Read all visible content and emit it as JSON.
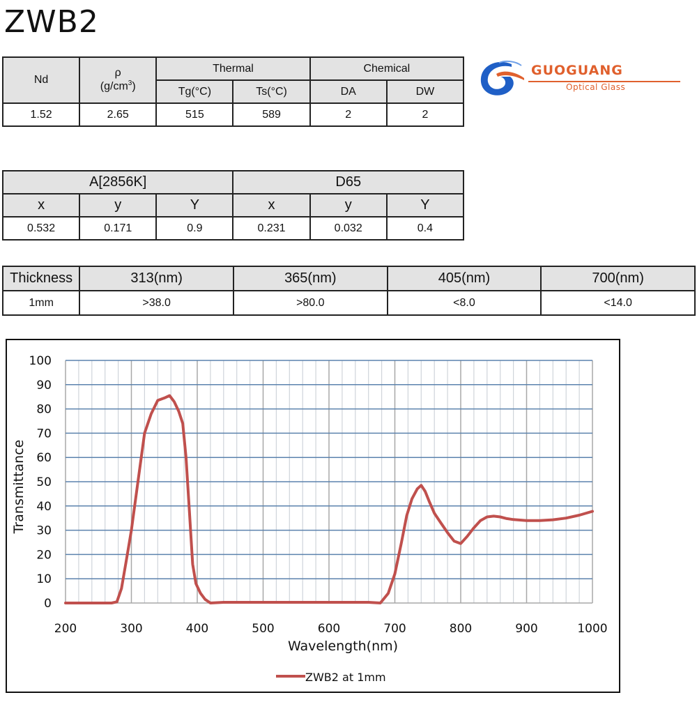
{
  "title": "ZWB2",
  "logo": {
    "brand": "GUOGUANG",
    "subtitle": "Optical Glass",
    "colors": {
      "blue": "#1f5fc6",
      "orange": "#e0602d"
    }
  },
  "properties_table": {
    "headers": {
      "nd": "Nd",
      "rho": "ρ",
      "rho_unit_prefix": "(g/cm",
      "rho_unit_sup": "3",
      "rho_unit_suffix": ")",
      "thermal": "Thermal",
      "chemical": "Chemical",
      "tg": "Tg(°C)",
      "ts": "Ts(°C)",
      "da": "DA",
      "dw": "DW"
    },
    "values": {
      "nd": "1.52",
      "rho": "2.65",
      "tg": "515",
      "ts": "589",
      "da": "2",
      "dw": "2"
    }
  },
  "color_table": {
    "groups": [
      "A[2856K]",
      "D65"
    ],
    "columns": [
      "x",
      "y",
      "Y",
      "x",
      "y",
      "Y"
    ],
    "values": [
      "0.532",
      "0.171",
      "0.9",
      "0.231",
      "0.032",
      "0.4"
    ]
  },
  "transmittance_table": {
    "headers": [
      "Thickness",
      "313(nm)",
      "365(nm)",
      "405(nm)",
      "700(nm)"
    ],
    "values": [
      "1mm",
      ">38.0",
      ">80.0",
      "<8.0",
      "<14.0"
    ]
  },
  "chart_data": {
    "type": "line",
    "title": "",
    "xlabel": "Wavelength(nm)",
    "ylabel": "Transmittance",
    "xlim": [
      200,
      1000
    ],
    "ylim": [
      0,
      100
    ],
    "xticks": [
      200,
      300,
      400,
      500,
      600,
      700,
      800,
      900,
      1000
    ],
    "yticks": [
      0,
      10,
      20,
      30,
      40,
      50,
      60,
      70,
      80,
      90,
      100
    ],
    "grid": true,
    "legend_position": "bottom",
    "series": [
      {
        "name": "ZWB2 at 1mm",
        "color": "#c0504d",
        "x": [
          200,
          250,
          270,
          278,
          285,
          292,
          300,
          310,
          320,
          330,
          340,
          350,
          358,
          365,
          372,
          378,
          383,
          388,
          393,
          398,
          405,
          412,
          420,
          440,
          500,
          600,
          660,
          678,
          690,
          700,
          710,
          718,
          726,
          734,
          740,
          746,
          752,
          760,
          770,
          780,
          790,
          800,
          810,
          820,
          830,
          840,
          850,
          860,
          870,
          880,
          900,
          920,
          940,
          960,
          980,
          1000
        ],
        "values": [
          0,
          0,
          0,
          0.5,
          6,
          17,
          30,
          50,
          70,
          78,
          83.5,
          84.5,
          85.5,
          83,
          79,
          74,
          60,
          38,
          16,
          8,
          4,
          1.5,
          0,
          0.3,
          0.3,
          0.3,
          0.3,
          0,
          4,
          12,
          25,
          36,
          43,
          47,
          48.5,
          46,
          42,
          37,
          33,
          29,
          25.5,
          24.5,
          27.5,
          31,
          34,
          35.5,
          35.8,
          35.5,
          34.8,
          34.4,
          34,
          34,
          34.3,
          35,
          36.2,
          37.8
        ]
      }
    ]
  }
}
